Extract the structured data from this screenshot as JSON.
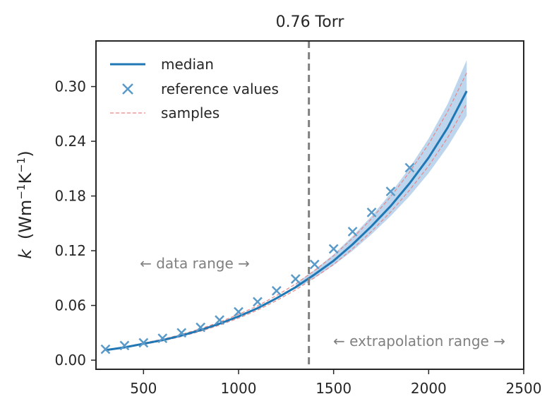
{
  "chart_data": {
    "type": "line",
    "title": "0.76 Torr",
    "ylabel_italic": "k",
    "ylabel_units": "(Wm",
    "ylabel_sup1": "−1",
    "ylabel_mid": "K",
    "ylabel_sup2": "−1",
    "ylabel_close": ")",
    "xlabel": "",
    "xlim": [
      250,
      2500
    ],
    "ylim": [
      -0.01,
      0.35
    ],
    "xticks": [
      500,
      1000,
      1500,
      2000,
      2500
    ],
    "yticks": [
      0.0,
      0.06,
      0.12,
      0.18,
      0.24,
      0.3
    ],
    "ytick_labels": [
      "0.00",
      "0.06",
      "0.12",
      "0.18",
      "0.24",
      "0.30"
    ],
    "median": {
      "name": "median",
      "color": "#1f77b4",
      "x": [
        300,
        400,
        500,
        600,
        700,
        800,
        900,
        1000,
        1100,
        1200,
        1300,
        1400,
        1500,
        1600,
        1700,
        1800,
        1900,
        2000,
        2100,
        2200
      ],
      "y": [
        0.011,
        0.014,
        0.018,
        0.022,
        0.027,
        0.033,
        0.04,
        0.048,
        0.057,
        0.068,
        0.08,
        0.094,
        0.109,
        0.127,
        0.147,
        0.169,
        0.194,
        0.222,
        0.255,
        0.295
      ]
    },
    "uncertainty_band": {
      "color": "#a7c7e7",
      "x": [
        1300,
        1400,
        1500,
        1600,
        1700,
        1800,
        1900,
        2000,
        2100,
        2200
      ],
      "lower": [
        0.078,
        0.09,
        0.104,
        0.12,
        0.138,
        0.158,
        0.18,
        0.205,
        0.234,
        0.268
      ],
      "upper": [
        0.084,
        0.099,
        0.116,
        0.136,
        0.158,
        0.183,
        0.211,
        0.243,
        0.281,
        0.329
      ]
    },
    "reference_values": {
      "name": "reference values",
      "color": "#5a9ac9",
      "x": [
        300,
        400,
        500,
        600,
        700,
        800,
        900,
        1000,
        1100,
        1200,
        1300,
        1400,
        1500,
        1600,
        1700,
        1800,
        1900
      ],
      "y": [
        0.012,
        0.016,
        0.019,
        0.024,
        0.03,
        0.036,
        0.044,
        0.053,
        0.064,
        0.076,
        0.089,
        0.105,
        0.122,
        0.141,
        0.162,
        0.185,
        0.211
      ]
    },
    "samples": {
      "name": "samples",
      "color": "#e88686",
      "x": [
        300,
        400,
        500,
        600,
        700,
        800,
        900,
        1000,
        1100,
        1200,
        1300,
        1400,
        1500,
        1600,
        1700,
        1800,
        1900,
        2000,
        2100,
        2200
      ],
      "lines": [
        [
          0.0105,
          0.0135,
          0.0172,
          0.0211,
          0.0259,
          0.0317,
          0.0384,
          0.0461,
          0.0548,
          0.0654,
          0.077,
          0.0905,
          0.1049,
          0.1222,
          0.1413,
          0.1625,
          0.1865,
          0.213,
          0.244,
          0.281
        ],
        [
          0.0115,
          0.0145,
          0.0188,
          0.023,
          0.0282,
          0.0345,
          0.0418,
          0.0502,
          0.0595,
          0.0709,
          0.0835,
          0.0984,
          0.1145,
          0.1338,
          0.1552,
          0.1792,
          0.2063,
          0.2369,
          0.2725,
          0.315
        ]
      ]
    },
    "divider_x": 1370,
    "divider_color": "#808080",
    "annotations": {
      "data_range": "← data range →",
      "extrapolation_range": "← extrapolation range →"
    },
    "legend_position": "top-left"
  }
}
